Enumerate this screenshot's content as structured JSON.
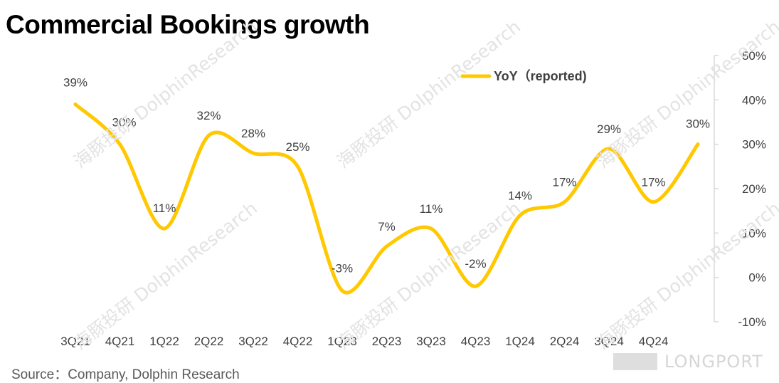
{
  "title": "Commercial Bookings growth",
  "source": "Source：Company, Dolphin Research",
  "watermark": "海豚投研 DolphinResearch",
  "brand": "LONGPORT",
  "colors": {
    "series": "#FFC800",
    "axis": "#D9D9D9",
    "text": "#404040"
  },
  "chart_data": {
    "type": "line",
    "categories": [
      "3Q21",
      "4Q21",
      "1Q22",
      "2Q22",
      "3Q22",
      "4Q22",
      "1Q23",
      "2Q23",
      "3Q23",
      "4Q23",
      "1Q24",
      "2Q24",
      "3Q24",
      "4Q24",
      ""
    ],
    "series": [
      {
        "name": "YoY（reported)",
        "values": [
          39,
          30,
          11,
          32,
          28,
          25,
          -3,
          7,
          11,
          -2,
          14,
          17,
          29,
          17,
          30
        ]
      }
    ],
    "data_labels": [
      "39%",
      "30%",
      "11%",
      "32%",
      "28%",
      "25%",
      "-3%",
      "7%",
      "11%",
      "-2%",
      "14%",
      "17%",
      "29%",
      "17%",
      "30%"
    ],
    "y_axis": {
      "position": "right",
      "ylim": [
        -10,
        50
      ],
      "ticks": [
        "50%",
        "40%",
        "30%",
        "20%",
        "10%",
        "0%",
        "-10%"
      ]
    },
    "smooth": true,
    "grid": false,
    "legend": "top-center"
  }
}
